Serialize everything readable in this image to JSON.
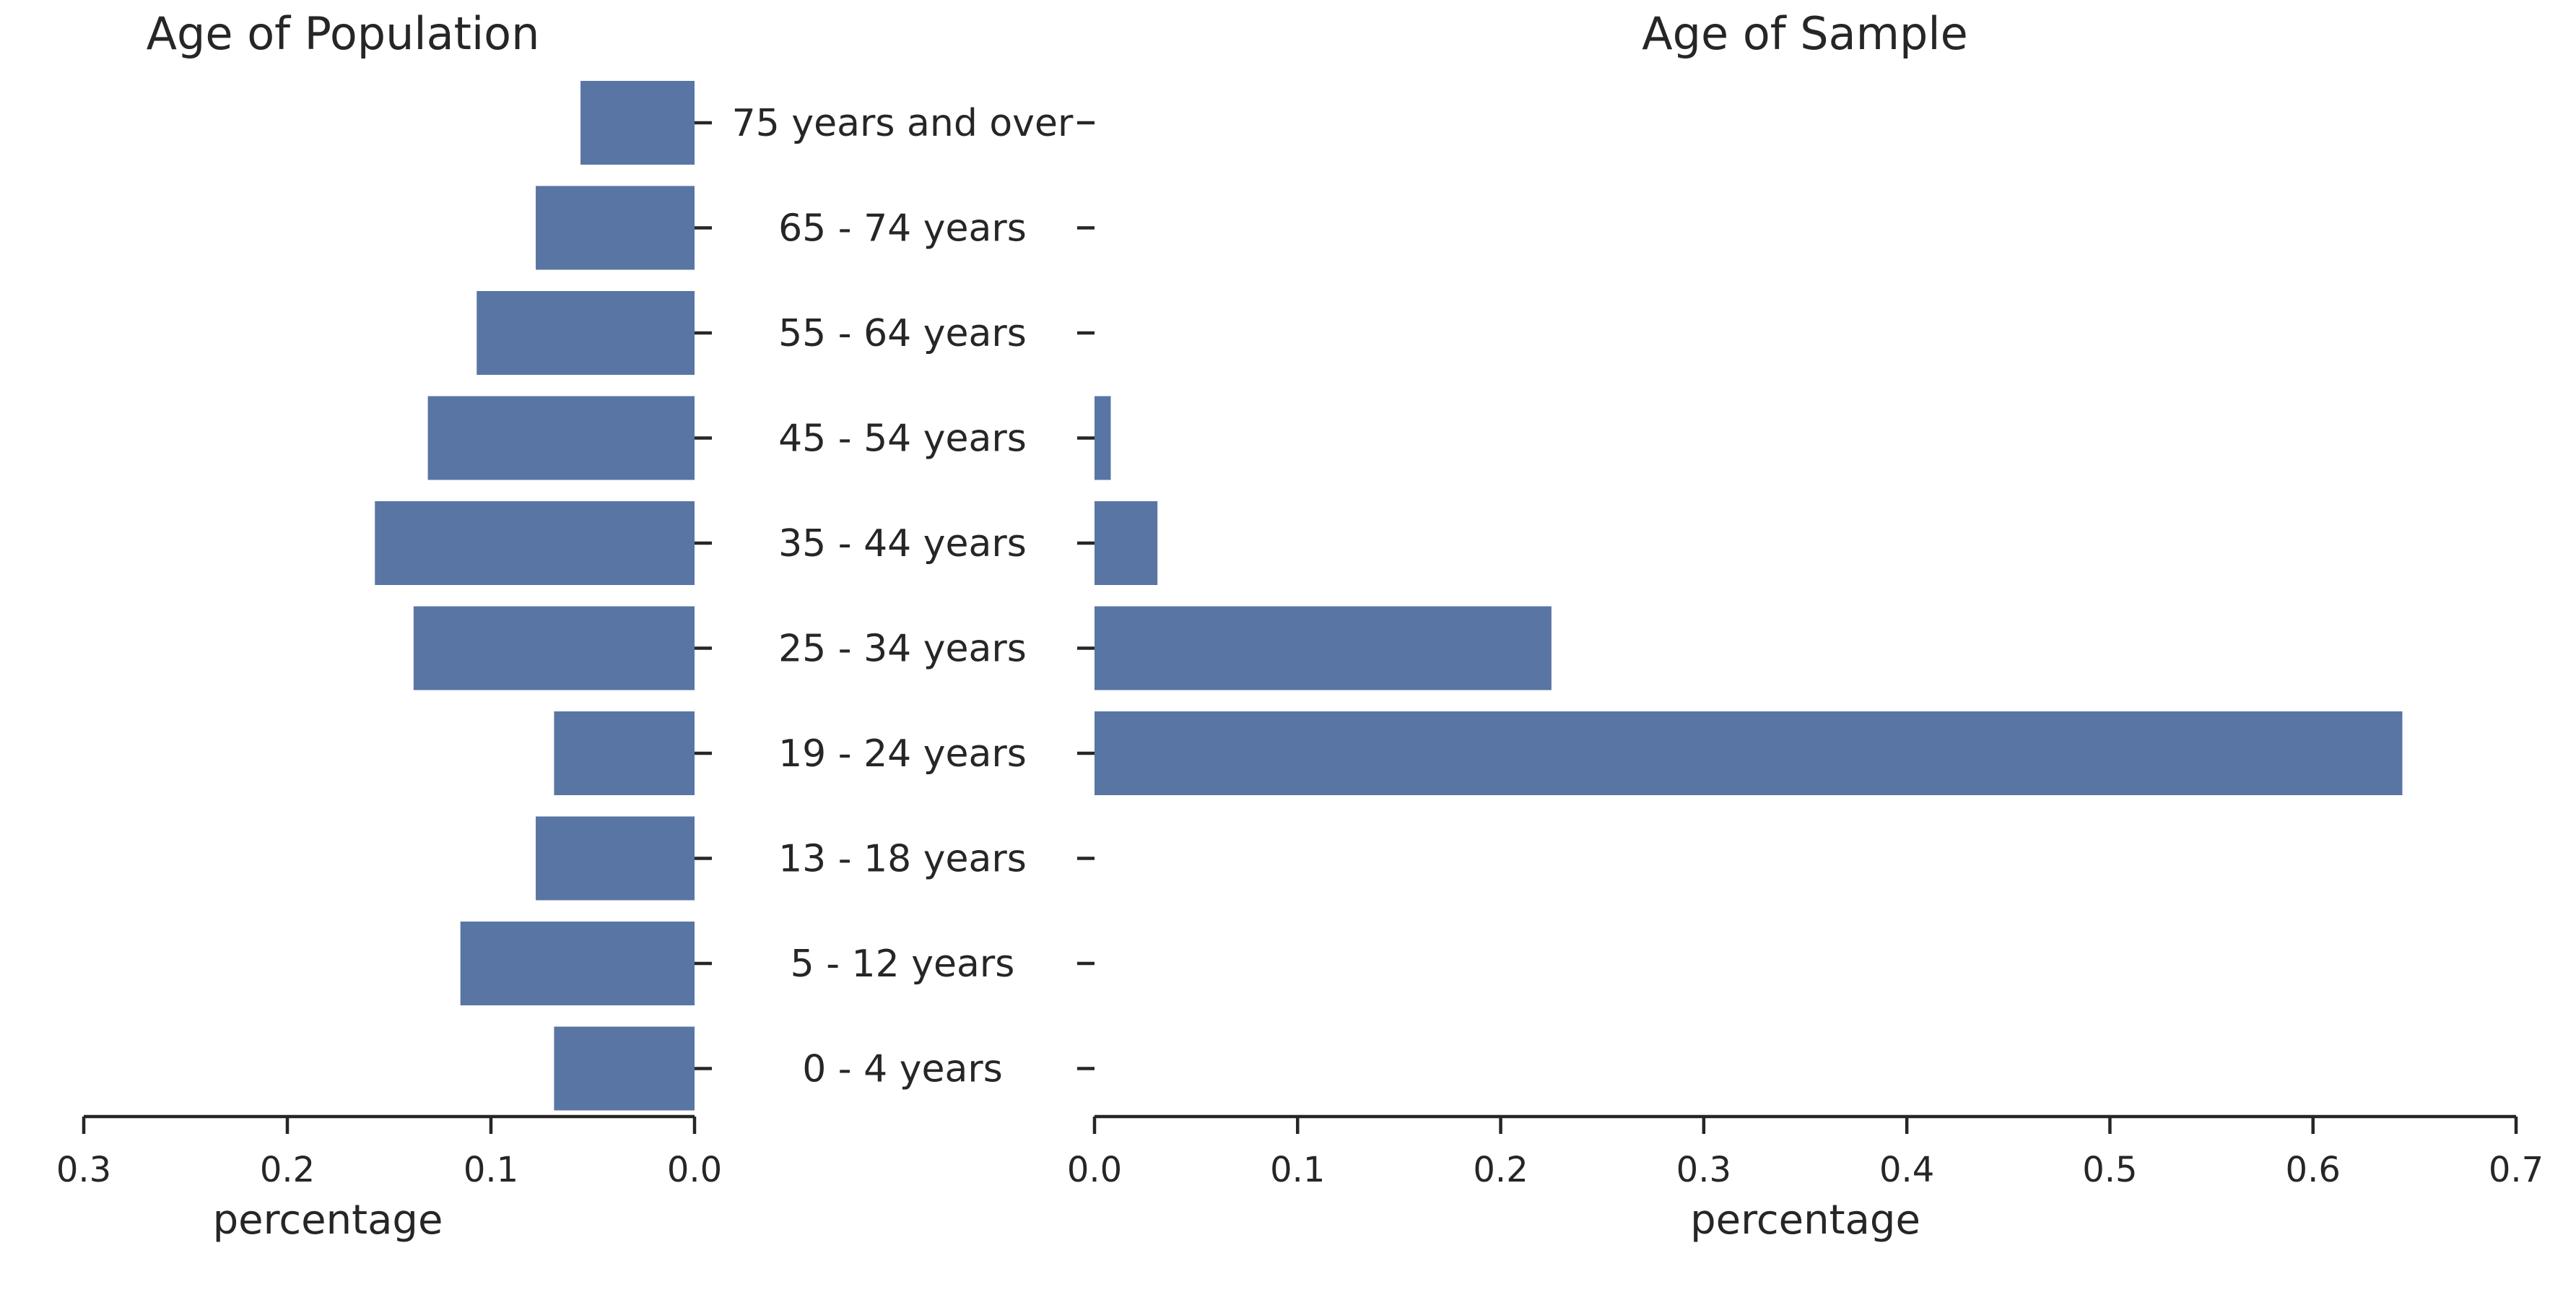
{
  "chart_data": [
    {
      "type": "bar",
      "orientation": "horizontal",
      "direction": "reversed",
      "title": "Age of Population",
      "xlabel": "percentage",
      "ylabel": "",
      "xlim": [
        0.3,
        0.0
      ],
      "xticks": [
        "0.3",
        "0.2",
        "0.1",
        "0.0"
      ],
      "categories": [
        "75 years and over",
        "65 - 74 years",
        "55 - 64 years",
        "45 - 54 years",
        "35 - 44 years",
        "25 - 34 years",
        "19 - 24 years",
        "13 - 18 years",
        "5 - 12 years",
        "0 - 4 years"
      ],
      "values": [
        0.056,
        0.078,
        0.107,
        0.131,
        0.157,
        0.138,
        0.069,
        0.078,
        0.115,
        0.069
      ],
      "color": "#5975a4",
      "grid": false
    },
    {
      "type": "bar",
      "orientation": "horizontal",
      "title": "Age of Sample",
      "xlabel": "percentage",
      "ylabel": "",
      "xlim": [
        0.0,
        0.7
      ],
      "xticks": [
        "0.0",
        "0.1",
        "0.2",
        "0.3",
        "0.4",
        "0.5",
        "0.6",
        "0.7"
      ],
      "categories": [
        "75 years and over",
        "65 - 74 years",
        "55 - 64 years",
        "45 - 54 years",
        "35 - 44 years",
        "25 - 34 years",
        "19 - 24 years",
        "13 - 18 years",
        "5 - 12 years",
        "0 - 4 years"
      ],
      "values": [
        0.0,
        0.0,
        0.0,
        0.008,
        0.031,
        0.225,
        0.644,
        0.0,
        0.0,
        0.0
      ],
      "color": "#5975a4",
      "grid": false
    }
  ]
}
